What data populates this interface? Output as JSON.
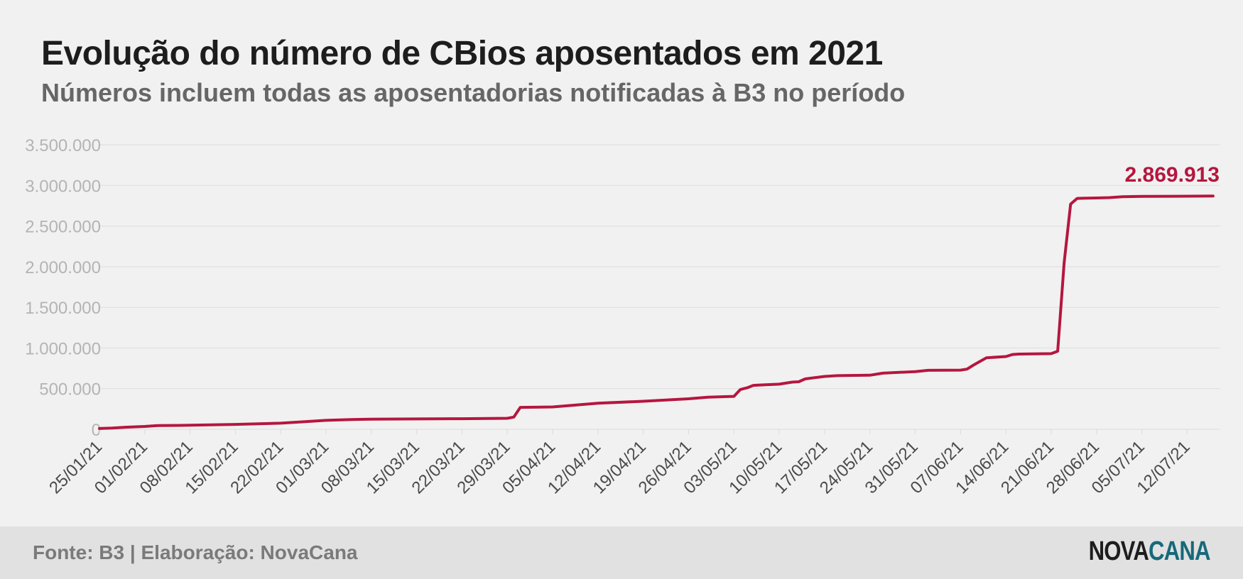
{
  "header": {
    "title": "Evolução do número de CBios aposentados em 2021",
    "subtitle": "Números incluem todas as aposentadorias notificadas à B3 no período"
  },
  "footer": {
    "source": "Fonte: B3 | Elaboração: NovaCana",
    "logo_part1": "NOVA",
    "logo_part2": "CANA"
  },
  "colors": {
    "line": "#b5163f",
    "grid": "#dcdcdc",
    "tick_text": "#b4b4b4",
    "background": "#f1f1f1"
  },
  "chart_data": {
    "type": "line",
    "title": "Evolução do número de CBios aposentados em 2021",
    "subtitle": "Números incluem todas as aposentadorias notificadas à B3 no período",
    "xlabel": "",
    "ylabel": "",
    "ylim": [
      0,
      3500000
    ],
    "yticks": [
      0,
      500000,
      1000000,
      1500000,
      2000000,
      2500000,
      3000000,
      3500000
    ],
    "ytick_labels": [
      "0",
      "500.000",
      "1.000.000",
      "1.500.000",
      "2.000.000",
      "2.500.000",
      "3.000.000",
      "3.500.000"
    ],
    "xlim": [
      "2021-01-25",
      "2021-07-17"
    ],
    "xtick_dates": [
      "2021-01-25",
      "2021-02-01",
      "2021-02-08",
      "2021-02-15",
      "2021-02-22",
      "2021-03-01",
      "2021-03-08",
      "2021-03-15",
      "2021-03-22",
      "2021-03-29",
      "2021-04-05",
      "2021-04-12",
      "2021-04-19",
      "2021-04-26",
      "2021-05-03",
      "2021-05-10",
      "2021-05-17",
      "2021-05-24",
      "2021-05-31",
      "2021-06-07",
      "2021-06-14",
      "2021-06-21",
      "2021-06-28",
      "2021-07-05",
      "2021-07-12"
    ],
    "xtick_labels": [
      "25/01/21",
      "01/02/21",
      "08/02/21",
      "15/02/21",
      "22/02/21",
      "01/03/21",
      "08/03/21",
      "15/03/21",
      "22/03/21",
      "29/03/21",
      "05/04/21",
      "12/04/21",
      "19/04/21",
      "26/04/21",
      "03/05/21",
      "10/05/21",
      "17/05/21",
      "24/05/21",
      "31/05/21",
      "07/06/21",
      "14/06/21",
      "21/06/21",
      "28/06/21",
      "05/07/21",
      "12/07/21"
    ],
    "grid": true,
    "annotation": {
      "text": "2.869.913",
      "x": "2021-07-16",
      "y": 2869913
    },
    "series": [
      {
        "x": [
          "2021-01-25",
          "2021-01-27",
          "2021-01-29",
          "2021-02-01",
          "2021-02-03",
          "2021-02-08",
          "2021-02-15",
          "2021-02-22",
          "2021-02-26",
          "2021-03-01",
          "2021-03-05",
          "2021-03-08",
          "2021-03-15",
          "2021-03-22",
          "2021-03-29",
          "2021-03-30",
          "2021-03-31",
          "2021-04-05",
          "2021-04-12",
          "2021-04-19",
          "2021-04-26",
          "2021-04-29",
          "2021-05-03",
          "2021-05-04",
          "2021-05-05",
          "2021-05-06",
          "2021-05-07",
          "2021-05-10",
          "2021-05-12",
          "2021-05-13",
          "2021-05-14",
          "2021-05-17",
          "2021-05-19",
          "2021-05-24",
          "2021-05-26",
          "2021-05-31",
          "2021-06-02",
          "2021-06-07",
          "2021-06-08",
          "2021-06-09",
          "2021-06-11",
          "2021-06-14",
          "2021-06-15",
          "2021-06-16",
          "2021-06-21",
          "2021-06-22",
          "2021-06-23",
          "2021-06-24",
          "2021-06-25",
          "2021-06-28",
          "2021-06-30",
          "2021-07-02",
          "2021-07-05",
          "2021-07-12",
          "2021-07-16"
        ],
        "y": [
          10000,
          15000,
          25000,
          35000,
          45000,
          50000,
          60000,
          75000,
          95000,
          110000,
          120000,
          125000,
          127000,
          130000,
          135000,
          150000,
          270000,
          275000,
          320000,
          345000,
          375000,
          395000,
          405000,
          490000,
          510000,
          540000,
          545000,
          555000,
          580000,
          585000,
          620000,
          650000,
          660000,
          665000,
          690000,
          710000,
          725000,
          728000,
          740000,
          790000,
          880000,
          895000,
          920000,
          925000,
          930000,
          960000,
          2050000,
          2770000,
          2840000,
          2845000,
          2850000,
          2860000,
          2865000,
          2867000,
          2869913
        ]
      }
    ]
  }
}
